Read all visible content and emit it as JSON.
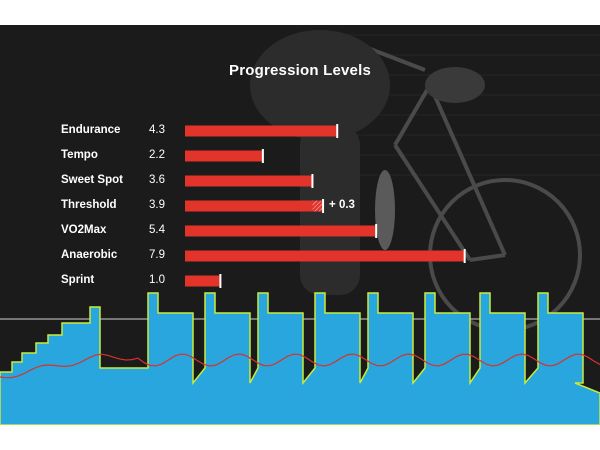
{
  "colors": {
    "panel_bg": "#1b1b1b",
    "bar": "#e2342a",
    "bar_end": "#ffffff",
    "power_fill": "#29a6dd",
    "power_outline": "#c8ec3c",
    "heart_rate": "#d5332b",
    "reference_line": "#d0d0d0"
  },
  "chart_data": {
    "type": "bar",
    "orientation": "horizontal",
    "title": "Progression Levels",
    "xlim": [
      0,
      10
    ],
    "categories": [
      "Endurance",
      "Tempo",
      "Sweet Spot",
      "Threshold",
      "VO2Max",
      "Anaerobic",
      "Sprint"
    ],
    "values": [
      4.3,
      2.2,
      3.6,
      3.9,
      5.4,
      7.9,
      1.0
    ],
    "value_labels": [
      "4.3",
      "2.2",
      "3.6",
      "3.9",
      "5.4",
      "7.9",
      "1.0"
    ],
    "annotations": [
      {
        "category": "Threshold",
        "gain": 0.3,
        "label": "+ 0.3"
      }
    ],
    "grid": false,
    "legend": "none"
  }
}
